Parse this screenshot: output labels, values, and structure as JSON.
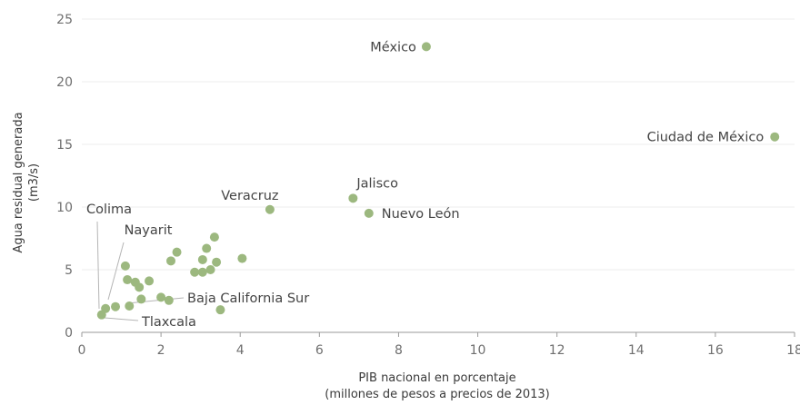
{
  "chart_data": {
    "type": "scatter",
    "xlabel": [
      "PIB nacional en porcentaje",
      "(millones de pesos a precios de 2013)"
    ],
    "ylabel": [
      "Agua residual generada",
      "(m3/s)"
    ],
    "xlim": [
      0,
      18
    ],
    "ylim": [
      0,
      25
    ],
    "x_ticks": [
      0,
      2,
      4,
      6,
      8,
      10,
      12,
      14,
      16,
      18
    ],
    "y_ticks": [
      0,
      5,
      10,
      15,
      20,
      25
    ],
    "grid": "horizontal",
    "colors": {
      "point": "#9cb87f",
      "grid": "#ececec",
      "axis": "#9a9a9a",
      "leader": "#b5b5b5"
    },
    "points": [
      {
        "label": "México",
        "x": 8.7,
        "y": 22.8
      },
      {
        "label": "Ciudad de México",
        "x": 17.5,
        "y": 15.6
      },
      {
        "label": "Jalisco",
        "x": 6.85,
        "y": 10.7
      },
      {
        "label": "Nuevo León",
        "x": 7.25,
        "y": 9.5
      },
      {
        "label": "Veracruz",
        "x": 4.75,
        "y": 9.8
      },
      {
        "label": "Colima",
        "x": 0.5,
        "y": 1.4
      },
      {
        "label": "Nayarit",
        "x": 0.85,
        "y": 2.05
      },
      {
        "label": "Baja California Sur",
        "x": 0.6,
        "y": 1.9
      },
      {
        "label": "Tlaxcala",
        "x": 1.2,
        "y": 2.1
      },
      {
        "label": "",
        "x": 1.1,
        "y": 5.3
      },
      {
        "label": "",
        "x": 1.15,
        "y": 4.2
      },
      {
        "label": "",
        "x": 1.35,
        "y": 4.0
      },
      {
        "label": "",
        "x": 1.45,
        "y": 3.6
      },
      {
        "label": "",
        "x": 1.7,
        "y": 4.1
      },
      {
        "label": "",
        "x": 1.5,
        "y": 2.65
      },
      {
        "label": "",
        "x": 2.0,
        "y": 2.8
      },
      {
        "label": "",
        "x": 2.2,
        "y": 2.55
      },
      {
        "label": "",
        "x": 2.25,
        "y": 5.7
      },
      {
        "label": "",
        "x": 2.4,
        "y": 6.4
      },
      {
        "label": "",
        "x": 2.85,
        "y": 4.8
      },
      {
        "label": "",
        "x": 3.05,
        "y": 4.8
      },
      {
        "label": "",
        "x": 3.05,
        "y": 5.8
      },
      {
        "label": "",
        "x": 3.15,
        "y": 6.7
      },
      {
        "label": "",
        "x": 3.25,
        "y": 5.0
      },
      {
        "label": "",
        "x": 3.35,
        "y": 7.6
      },
      {
        "label": "",
        "x": 3.4,
        "y": 5.6
      },
      {
        "label": "",
        "x": 4.05,
        "y": 5.9
      },
      {
        "label": "",
        "x": 3.5,
        "y": 1.8
      }
    ]
  }
}
